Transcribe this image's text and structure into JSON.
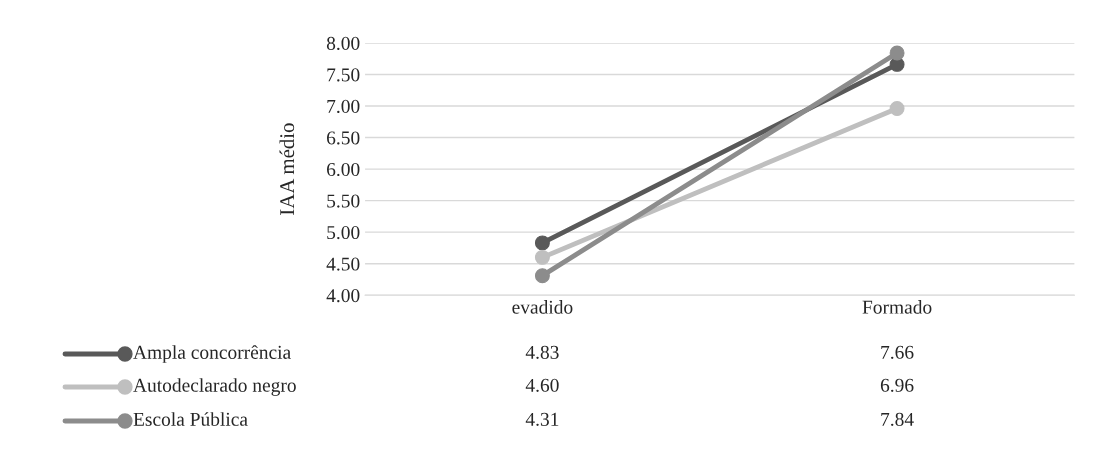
{
  "chart_data": {
    "type": "line",
    "ylabel": "IAA médio",
    "categories": [
      "evadido",
      "Formado"
    ],
    "series": [
      {
        "name": "Ampla concorrência",
        "color": "#595959",
        "values": [
          4.83,
          7.66
        ]
      },
      {
        "name": "Autodeclarado negro",
        "color": "#bfbfbf",
        "values": [
          4.6,
          6.96
        ]
      },
      {
        "name": "Escola Pública",
        "color": "#8c8c8c",
        "values": [
          4.31,
          7.84
        ]
      }
    ],
    "ylim": [
      4.0,
      8.0
    ],
    "yticks": [
      {
        "value": 4.0,
        "label": "4.00"
      },
      {
        "value": 4.5,
        "label": "4.50"
      },
      {
        "value": 5.0,
        "label": "5.00"
      },
      {
        "value": 5.5,
        "label": "5.50"
      },
      {
        "value": 6.0,
        "label": "6.00"
      },
      {
        "value": 6.5,
        "label": "6.50"
      },
      {
        "value": 7.0,
        "label": "7.00"
      },
      {
        "value": 7.5,
        "label": "7.50"
      },
      {
        "value": 8.0,
        "label": "8.00"
      }
    ],
    "value_labels": [
      [
        "4.83",
        "7.66"
      ],
      [
        "4.60",
        "6.96"
      ],
      [
        "4.31",
        "7.84"
      ]
    ],
    "grid": "y",
    "legend": "bottom",
    "marker": "circle",
    "line_style": "solid"
  }
}
